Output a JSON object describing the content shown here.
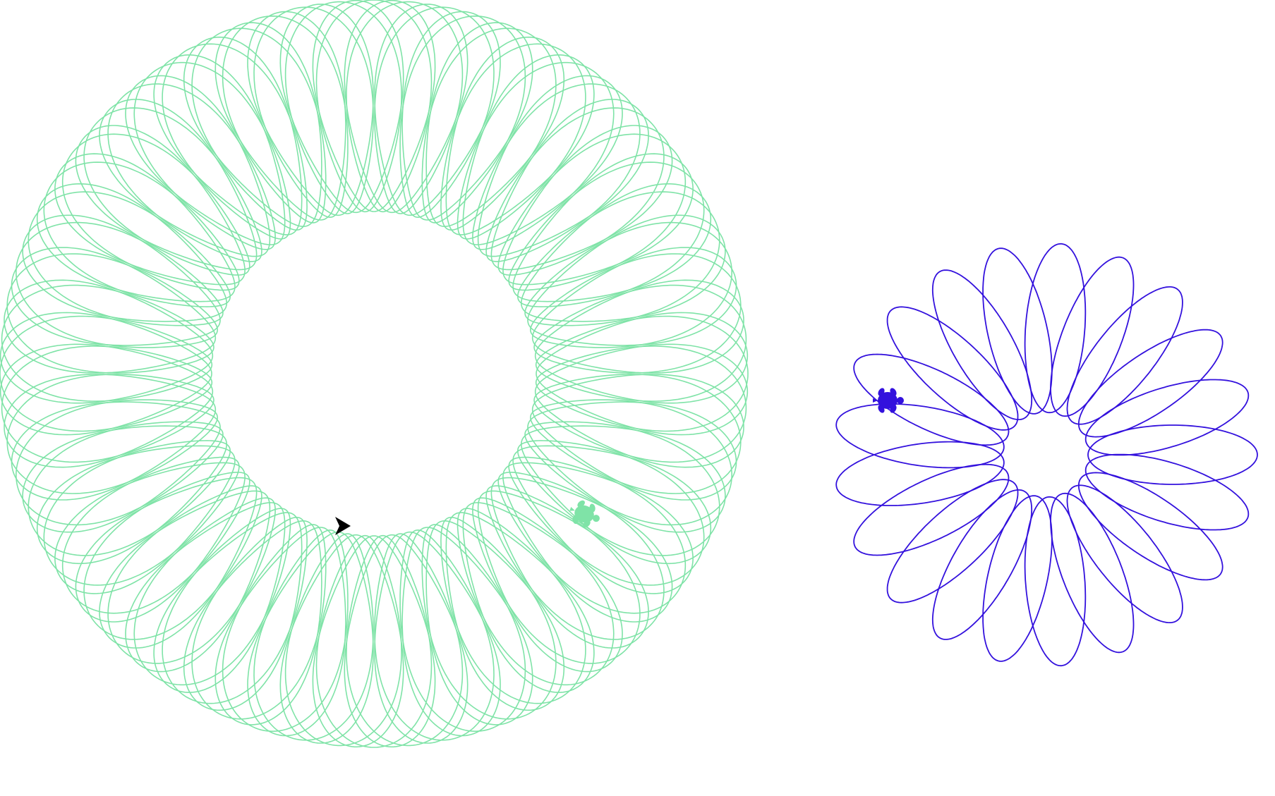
{
  "canvas": {
    "background": "#ffffff"
  },
  "drawings": [
    {
      "name": "green-spirograph",
      "color": "#7fe3a7",
      "shape": "epitrochoid-loops",
      "loop_count": 60,
      "turtle_icon": "turtle-icon"
    },
    {
      "name": "blue-spirograph",
      "color": "#3311dd",
      "shape": "petal-loops",
      "loop_count": 21,
      "turtle_icon": "turtle-icon"
    }
  ],
  "cursor": {
    "icon": "arrow-cursor-icon",
    "color": "#000000"
  }
}
